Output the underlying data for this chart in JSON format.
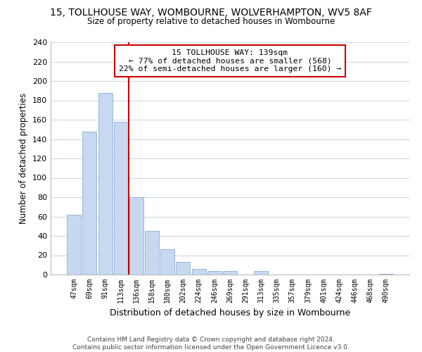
{
  "title": "15, TOLLHOUSE WAY, WOMBOURNE, WOLVERHAMPTON, WV5 8AF",
  "subtitle": "Size of property relative to detached houses in Wombourne",
  "xlabel": "Distribution of detached houses by size in Wombourne",
  "ylabel": "Number of detached properties",
  "bar_color": "#c6d9f1",
  "bar_edge_color": "#9ab5d8",
  "bin_labels": [
    "47sqm",
    "69sqm",
    "91sqm",
    "113sqm",
    "136sqm",
    "158sqm",
    "180sqm",
    "202sqm",
    "224sqm",
    "246sqm",
    "269sqm",
    "291sqm",
    "313sqm",
    "335sqm",
    "357sqm",
    "379sqm",
    "401sqm",
    "424sqm",
    "446sqm",
    "468sqm",
    "490sqm"
  ],
  "bar_values": [
    62,
    148,
    188,
    158,
    80,
    45,
    26,
    13,
    6,
    4,
    4,
    0,
    4,
    0,
    0,
    0,
    0,
    0,
    0,
    0,
    1
  ],
  "vline_color": "#cc0000",
  "ylim": [
    0,
    240
  ],
  "yticks": [
    0,
    20,
    40,
    60,
    80,
    100,
    120,
    140,
    160,
    180,
    200,
    220,
    240
  ],
  "annotation_title": "15 TOLLHOUSE WAY: 139sqm",
  "annotation_line1": "← 77% of detached houses are smaller (568)",
  "annotation_line2": "22% of semi-detached houses are larger (160) →",
  "footer_line1": "Contains HM Land Registry data © Crown copyright and database right 2024.",
  "footer_line2": "Contains public sector information licensed under the Open Government Licence v3.0.",
  "background_color": "#ffffff",
  "grid_color": "#d0d8e8"
}
